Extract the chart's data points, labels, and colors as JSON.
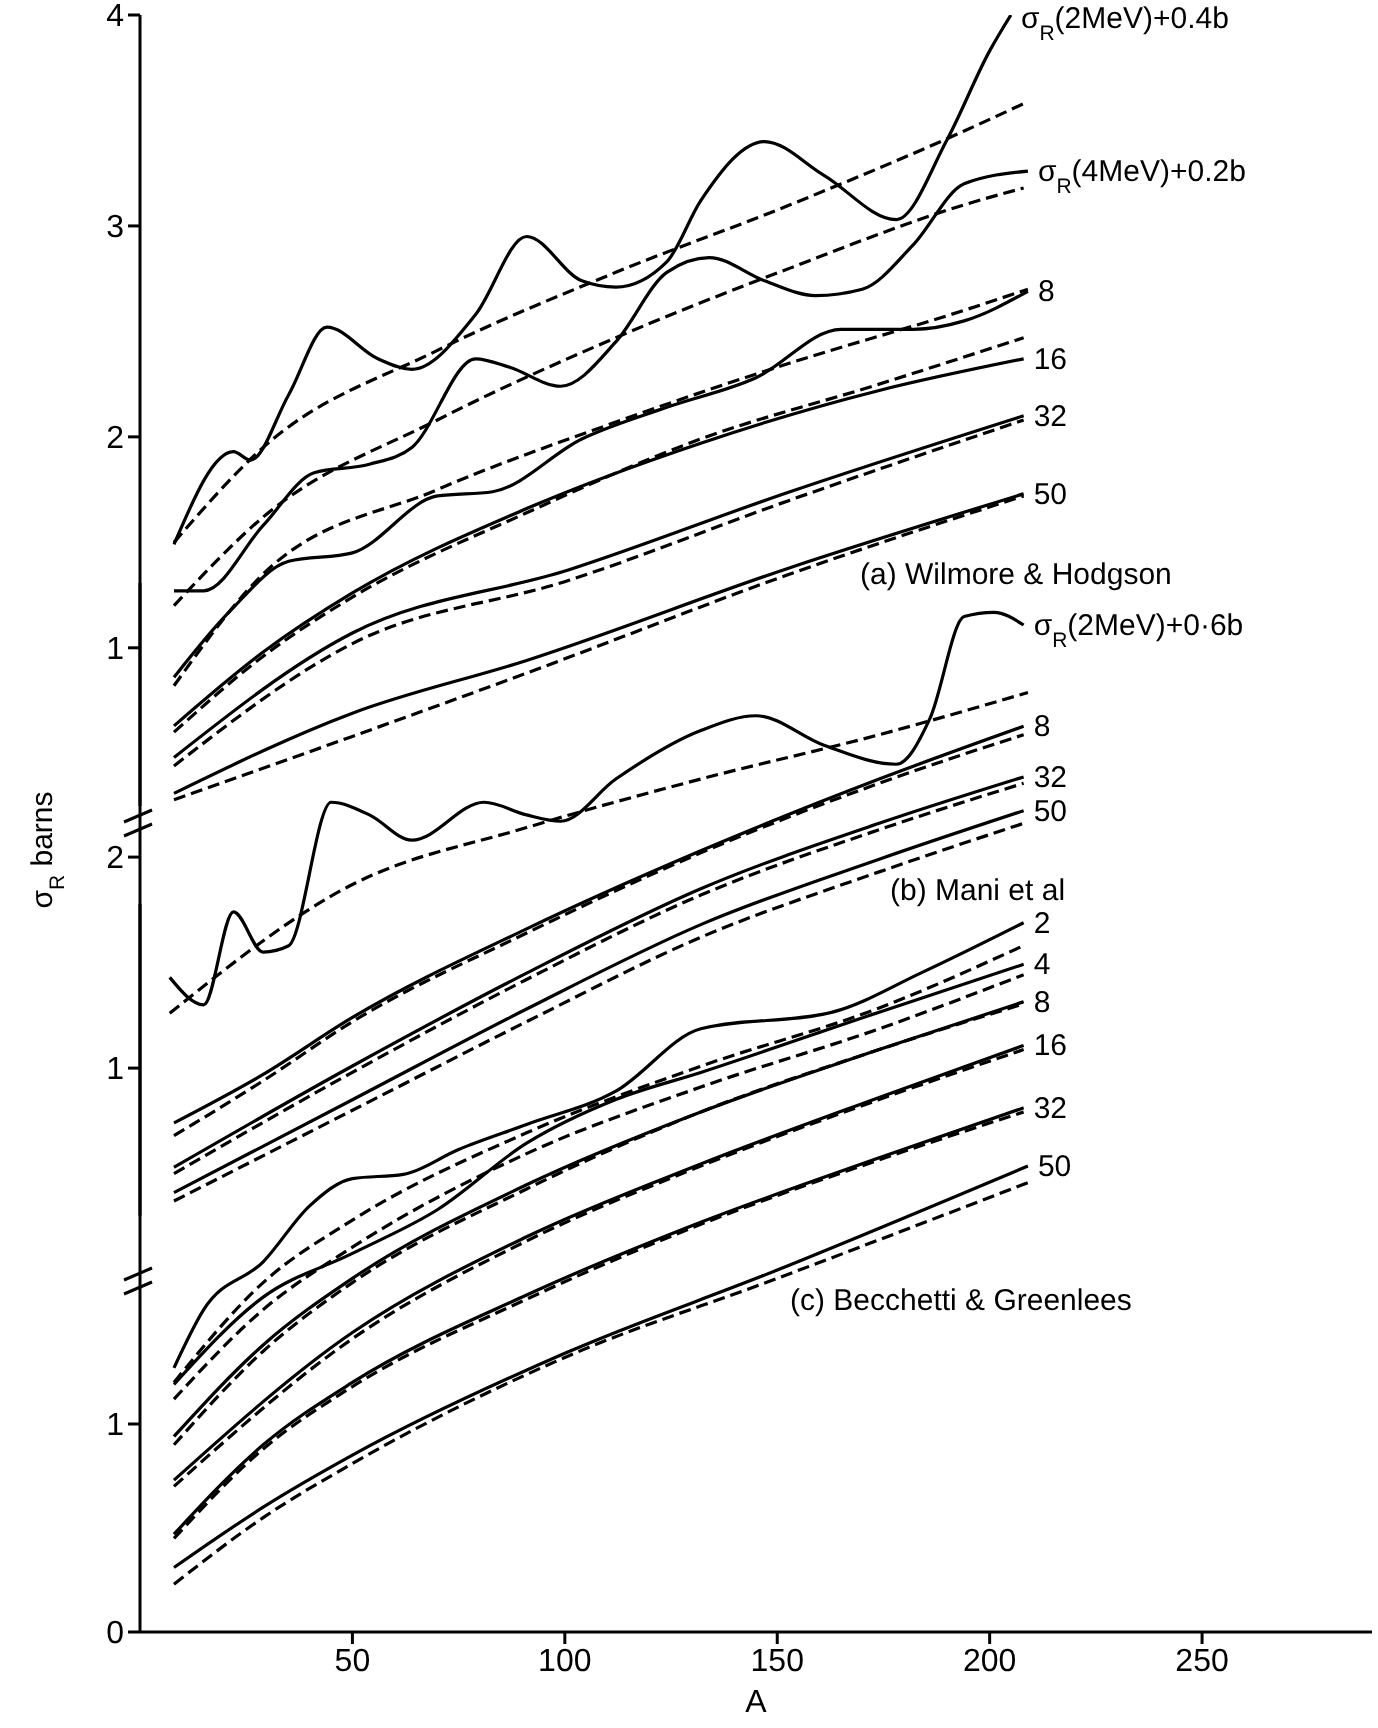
{
  "chart_data": [
    {
      "type": "line",
      "xlim": [
        0,
        290
      ],
      "xticks": [
        50,
        100,
        150,
        200,
        250
      ],
      "ylim": [
        0.25,
        4
      ],
      "yticks": [
        1,
        2,
        3,
        4
      ],
      "tick_labels": "y",
      "annotations": [
        "(a) Wilmore & Hodgson"
      ],
      "series": [
        {
          "name": "σ$_{R}$(2MeV)+0.4b",
          "color": "#000000",
          "line_style": "solid",
          "x": [
            8,
            22,
            26,
            35,
            44,
            56,
            64,
            79,
            91,
            104,
            112,
            124,
            132,
            147,
            161,
            178,
            190,
            200,
            205
          ],
          "values": [
            1.49,
            1.93,
            1.89,
            2.2,
            2.52,
            2.37,
            2.32,
            2.58,
            2.95,
            2.74,
            2.71,
            2.83,
            3.12,
            3.4,
            3.24,
            3.03,
            3.41,
            3.83,
            4.0
          ]
        },
        {
          "color": "#000000",
          "line_style": "dashed",
          "x": [
            8,
            29,
            70,
            112,
            153,
            194,
            208
          ],
          "values": [
            1.5,
            1.95,
            2.41,
            2.78,
            3.1,
            3.45,
            3.58
          ]
        },
        {
          "name": "σ$_{R}$(4MeV)+0.2b",
          "color": "#000000",
          "line_style": "solid",
          "x": [
            8,
            15,
            29,
            41,
            54,
            64,
            79,
            87,
            99,
            112,
            124,
            134,
            147,
            159,
            170,
            182,
            194,
            209
          ],
          "values": [
            1.27,
            1.27,
            1.58,
            1.83,
            1.87,
            1.95,
            2.37,
            2.33,
            2.24,
            2.45,
            2.78,
            2.85,
            2.74,
            2.67,
            2.7,
            2.91,
            3.2,
            3.26
          ]
        },
        {
          "color": "#000000",
          "line_style": "dashed",
          "x": [
            8,
            29,
            70,
            112,
            153,
            194,
            208
          ],
          "values": [
            1.2,
            1.62,
            2.08,
            2.47,
            2.8,
            3.1,
            3.18
          ]
        },
        {
          "name": "8",
          "color": "#000000",
          "line_style": "solid",
          "x": [
            8,
            21,
            35,
            50,
            70,
            83,
            104,
            124,
            145,
            165,
            182,
            194,
            209
          ],
          "values": [
            0.86,
            1.17,
            1.41,
            1.45,
            1.72,
            1.74,
            1.99,
            2.14,
            2.28,
            2.51,
            2.51,
            2.55,
            2.69
          ]
        },
        {
          "color": "#000000",
          "line_style": "dashed",
          "x": [
            8,
            29,
            70,
            112,
            153,
            194,
            209
          ],
          "values": [
            0.82,
            1.35,
            1.75,
            2.07,
            2.35,
            2.6,
            2.7
          ]
        },
        {
          "name": "16",
          "color": "#000000",
          "line_style": "solid",
          "x": [
            8,
            29,
            50,
            91,
            132,
            174,
            208
          ],
          "values": [
            0.63,
            0.98,
            1.26,
            1.66,
            1.97,
            2.22,
            2.37
          ]
        },
        {
          "color": "#000000",
          "line_style": "dashed",
          "x": [
            8,
            29,
            50,
            91,
            132,
            174,
            208
          ],
          "values": [
            0.6,
            0.96,
            1.24,
            1.64,
            1.99,
            2.25,
            2.47
          ]
        },
        {
          "name": "32",
          "color": "#000000",
          "line_style": "solid",
          "x": [
            8,
            50,
            101,
            153,
            208
          ],
          "values": [
            0.48,
            1.07,
            1.37,
            1.74,
            2.1
          ]
        },
        {
          "color": "#000000",
          "line_style": "dashed",
          "x": [
            8,
            50,
            101,
            153,
            208
          ],
          "values": [
            0.44,
            1.02,
            1.32,
            1.7,
            2.08
          ]
        },
        {
          "name": "50",
          "color": "#000000",
          "line_style": "solid",
          "x": [
            8,
            50,
            91,
            153,
            208
          ],
          "values": [
            0.31,
            0.69,
            0.94,
            1.38,
            1.73
          ]
        },
        {
          "color": "#000000",
          "line_style": "dashed",
          "x": [
            8,
            50,
            91,
            153,
            208
          ],
          "values": [
            0.28,
            0.58,
            0.88,
            1.35,
            1.72
          ]
        }
      ]
    },
    {
      "type": "line",
      "xlim": [
        0,
        290
      ],
      "xticks": [
        50,
        100,
        150,
        200,
        250
      ],
      "ylim": [
        0.3,
        3.3
      ],
      "yticks": [
        1,
        2
      ],
      "tick_labels": "y",
      "ylabel": "σ$_{R}$ barns",
      "annotations": [
        "(b) Mani et al"
      ],
      "series": [
        {
          "name": "σ$_{R}$(2MeV)+0·6b",
          "color": "#000000",
          "line_style": "solid",
          "x": [
            7,
            15,
            22,
            29,
            35,
            45,
            54,
            64,
            81,
            91,
            99,
            112,
            132,
            145,
            161,
            178,
            186,
            194,
            201,
            208
          ],
          "values": [
            1.43,
            1.3,
            1.74,
            1.55,
            1.58,
            2.26,
            2.2,
            2.08,
            2.26,
            2.2,
            2.17,
            2.37,
            2.6,
            2.67,
            2.53,
            2.44,
            2.66,
            3.14,
            3.16,
            3.1
          ]
        },
        {
          "color": "#000000",
          "line_style": "dashed",
          "x": [
            7,
            50,
            91,
            132,
            174,
            209
          ],
          "values": [
            1.26,
            1.87,
            2.14,
            2.37,
            2.58,
            2.78
          ]
        },
        {
          "name": "8",
          "color": "#000000",
          "line_style": "solid",
          "x": [
            8,
            29,
            50,
            91,
            132,
            174,
            208
          ],
          "values": [
            0.74,
            0.97,
            1.24,
            1.66,
            2.03,
            2.37,
            2.62
          ]
        },
        {
          "color": "#000000",
          "line_style": "dashed",
          "x": [
            8,
            29,
            50,
            91,
            132,
            174,
            208
          ],
          "values": [
            0.68,
            0.94,
            1.22,
            1.64,
            2.02,
            2.35,
            2.58
          ]
        },
        {
          "name": "32",
          "color": "#000000",
          "line_style": "solid",
          "x": [
            8,
            50,
            91,
            132,
            174,
            208
          ],
          "values": [
            0.53,
            1.01,
            1.45,
            1.85,
            2.16,
            2.38
          ]
        },
        {
          "color": "#000000",
          "line_style": "dashed",
          "x": [
            8,
            50,
            91,
            132,
            174,
            208
          ],
          "values": [
            0.5,
            0.98,
            1.42,
            1.82,
            2.13,
            2.35
          ]
        },
        {
          "name": "50",
          "color": "#000000",
          "line_style": "solid",
          "x": [
            8,
            50,
            91,
            132,
            174,
            208
          ],
          "values": [
            0.41,
            0.85,
            1.28,
            1.68,
            1.99,
            2.22
          ]
        },
        {
          "color": "#000000",
          "line_style": "dashed",
          "x": [
            8,
            50,
            91,
            132,
            174,
            208
          ],
          "values": [
            0.37,
            0.8,
            1.22,
            1.62,
            1.93,
            2.16
          ]
        }
      ]
    },
    {
      "type": "line",
      "xlim": [
        0,
        290
      ],
      "xticks": [
        50,
        100,
        150,
        200,
        250
      ],
      "ylim": [
        0,
        3.5
      ],
      "yticks": [
        0,
        1
      ],
      "xlabel": "A",
      "annotations": [
        "(c) Becchetti & Greenlees"
      ],
      "series": [
        {
          "name": "2",
          "color": "#000000",
          "line_style": "solid",
          "x": [
            8,
            15,
            29,
            40,
            50,
            62,
            75,
            91,
            112,
            132,
            163,
            184,
            208
          ],
          "values": [
            1.27,
            1.55,
            1.78,
            2.05,
            2.18,
            2.2,
            2.32,
            2.44,
            2.6,
            2.9,
            2.98,
            3.17,
            3.41
          ]
        },
        {
          "color": "#000000",
          "line_style": "dashed",
          "x": [
            8,
            29,
            50,
            91,
            132,
            174,
            208
          ],
          "values": [
            1.2,
            1.68,
            1.98,
            2.4,
            2.72,
            3.0,
            3.3
          ]
        },
        {
          "name": "4",
          "color": "#000000",
          "line_style": "solid",
          "x": [
            8,
            29,
            50,
            70,
            91,
            112,
            132,
            174,
            208
          ],
          "values": [
            1.19,
            1.61,
            1.82,
            2.03,
            2.35,
            2.56,
            2.69,
            2.98,
            3.21
          ]
        },
        {
          "color": "#000000",
          "line_style": "dashed",
          "x": [
            8,
            29,
            50,
            91,
            132,
            174,
            208
          ],
          "values": [
            1.12,
            1.55,
            1.85,
            2.3,
            2.62,
            2.9,
            3.16
          ]
        },
        {
          "name": "8",
          "color": "#000000",
          "line_style": "solid",
          "x": [
            8,
            29,
            50,
            91,
            132,
            174,
            208
          ],
          "values": [
            0.94,
            1.38,
            1.7,
            2.15,
            2.5,
            2.8,
            3.03
          ]
        },
        {
          "color": "#000000",
          "line_style": "dashed",
          "x": [
            8,
            29,
            50,
            91,
            132,
            174,
            208
          ],
          "values": [
            0.9,
            1.35,
            1.68,
            2.13,
            2.5,
            2.8,
            3.02
          ]
        },
        {
          "name": "16",
          "color": "#000000",
          "line_style": "solid",
          "x": [
            8,
            50,
            91,
            132,
            174,
            208
          ],
          "values": [
            0.73,
            1.44,
            1.9,
            2.25,
            2.57,
            2.82
          ]
        },
        {
          "color": "#000000",
          "line_style": "dashed",
          "x": [
            8,
            50,
            91,
            132,
            174,
            208
          ],
          "values": [
            0.7,
            1.41,
            1.88,
            2.24,
            2.56,
            2.8
          ]
        },
        {
          "name": "32",
          "color": "#000000",
          "line_style": "solid",
          "x": [
            8,
            29,
            50,
            91,
            132,
            174,
            208
          ],
          "values": [
            0.47,
            0.9,
            1.2,
            1.62,
            1.97,
            2.28,
            2.52
          ]
        },
        {
          "color": "#000000",
          "line_style": "dashed",
          "x": [
            8,
            29,
            50,
            91,
            132,
            174,
            208
          ],
          "values": [
            0.45,
            0.88,
            1.18,
            1.6,
            1.96,
            2.27,
            2.5
          ]
        },
        {
          "name": "50",
          "color": "#000000",
          "line_style": "solid",
          "x": [
            8,
            29,
            50,
            100,
            150,
            209
          ],
          "values": [
            0.31,
            0.6,
            0.85,
            1.34,
            1.74,
            2.24
          ]
        },
        {
          "color": "#000000",
          "line_style": "dashed",
          "x": [
            8,
            29,
            50,
            100,
            150,
            209
          ],
          "values": [
            0.23,
            0.55,
            0.81,
            1.32,
            1.7,
            2.16
          ]
        }
      ]
    }
  ]
}
